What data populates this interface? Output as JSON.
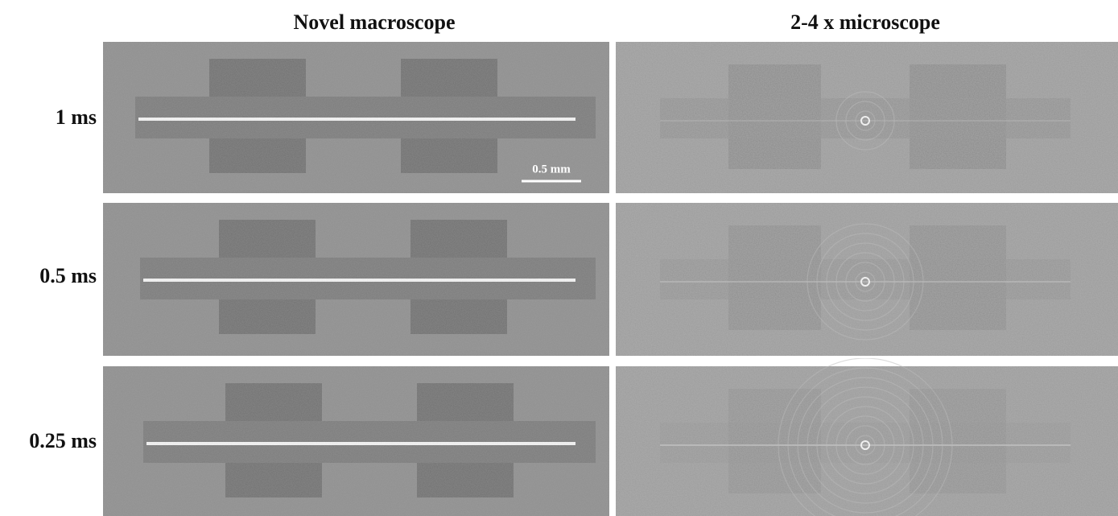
{
  "columns": [
    "Novel macroscope",
    "2-4 x microscope"
  ],
  "rows": [
    "1 ms",
    "0.5 ms",
    "0.25 ms"
  ],
  "scale_bar": "0.5 mm"
}
